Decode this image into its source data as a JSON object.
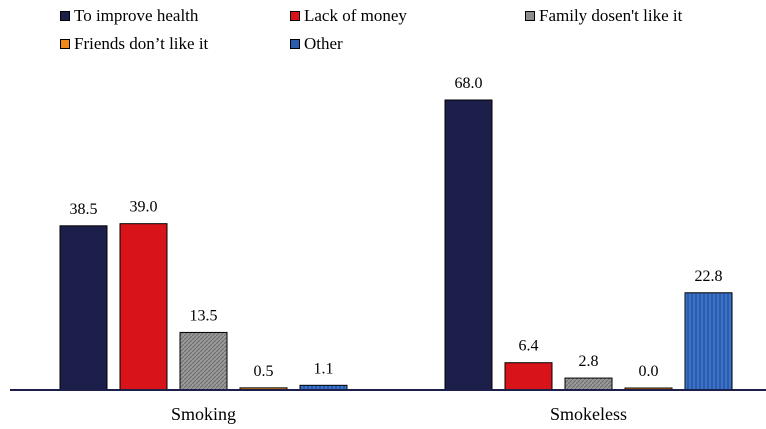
{
  "chart_data": {
    "type": "bar",
    "categories": [
      "Smoking",
      "Smokeless"
    ],
    "series": [
      {
        "name": "To improve health",
        "color": "#1b1f4a",
        "values": [
          38.5,
          68.0
        ]
      },
      {
        "name": "Lack of money",
        "color": "#d8141a",
        "values": [
          39.0,
          6.4
        ]
      },
      {
        "name": "Family dosen't like it",
        "color": "#8c8c8c",
        "values": [
          13.5,
          2.8
        ]
      },
      {
        "name": "Friends don’t like it",
        "color": "#f08a1a",
        "values": [
          0.5,
          0.0
        ]
      },
      {
        "name": "Other",
        "color": "#2a5db0",
        "values": [
          1.1,
          22.8
        ]
      }
    ],
    "value_labels": [
      [
        "38.5",
        "68.0"
      ],
      [
        "39.0",
        "6.4"
      ],
      [
        "13.5",
        "2.8"
      ],
      [
        "0.5",
        "0.0"
      ],
      [
        "1.1",
        "22.8"
      ]
    ],
    "ylim": [
      0,
      75
    ],
    "title": "",
    "xlabel": "",
    "ylabel": "",
    "grid": false,
    "legend_position": "top-left"
  }
}
